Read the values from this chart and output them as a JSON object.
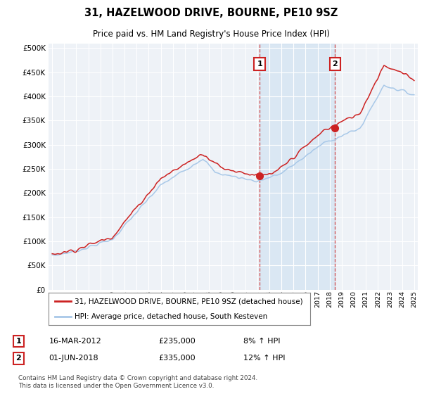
{
  "title": "31, HAZELWOOD DRIVE, BOURNE, PE10 9SZ",
  "subtitle": "Price paid vs. HM Land Registry's House Price Index (HPI)",
  "legend_line1": "31, HAZELWOOD DRIVE, BOURNE, PE10 9SZ (detached house)",
  "legend_line2": "HPI: Average price, detached house, South Kesteven",
  "annotation1": {
    "label": "1",
    "date": "16-MAR-2012",
    "price": "£235,000",
    "change": "8% ↑ HPI",
    "x_year": 2012.2,
    "y_price": 235000
  },
  "annotation2": {
    "label": "2",
    "date": "01-JUN-2018",
    "price": "£335,000",
    "change": "12% ↑ HPI",
    "x_year": 2018.45,
    "y_price": 335000
  },
  "footer": "Contains HM Land Registry data © Crown copyright and database right 2024.\nThis data is licensed under the Open Government Licence v3.0.",
  "hpi_color": "#a8c8e8",
  "price_color": "#cc2222",
  "background_color": "#ffffff",
  "plot_bg_color": "#eef2f7",
  "grid_color": "#ffffff",
  "shade_color": "#c8ddf0",
  "ylim": [
    0,
    510000
  ],
  "yticks": [
    0,
    50000,
    100000,
    150000,
    200000,
    250000,
    300000,
    350000,
    400000,
    450000,
    500000
  ],
  "xlim": [
    1994.7,
    2025.3
  ]
}
